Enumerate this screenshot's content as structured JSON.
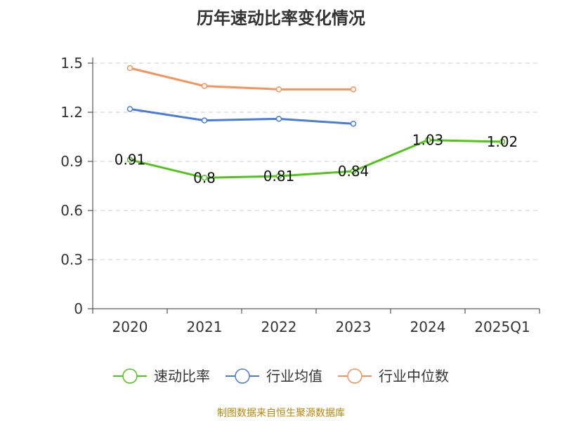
{
  "chart_data": {
    "type": "line",
    "title": "历年速动比率变化情况",
    "xlabel": "",
    "ylabel": "",
    "categories": [
      "2020",
      "2021",
      "2022",
      "2023",
      "2024",
      "2025Q1"
    ],
    "ylim": [
      0,
      1.5
    ],
    "yticks": [
      "0",
      "0.3",
      "0.6",
      "0.9",
      "1.2",
      "1.5"
    ],
    "ytick_values": [
      0,
      0.3,
      0.6,
      0.9,
      1.2,
      1.5
    ],
    "grid": true,
    "legend_position": "bottom",
    "series": [
      {
        "name": "速动比率",
        "color": "#52c41a",
        "values": [
          0.91,
          0.8,
          0.81,
          0.84,
          1.03,
          1.02
        ],
        "labels": [
          "0.91",
          "0.8",
          "0.81",
          "0.84",
          "1.03",
          "1.02"
        ],
        "show_labels": true
      },
      {
        "name": "行业均值",
        "color": "#4a7bd8",
        "values": [
          1.22,
          1.15,
          1.16,
          1.13,
          null,
          null
        ],
        "show_labels": false
      },
      {
        "name": "行业中位数",
        "color": "#f7935a",
        "values": [
          1.47,
          1.36,
          1.34,
          1.34,
          null,
          null
        ],
        "show_labels": false
      }
    ]
  },
  "source_note": "制图数据来自恒生聚源数据库"
}
